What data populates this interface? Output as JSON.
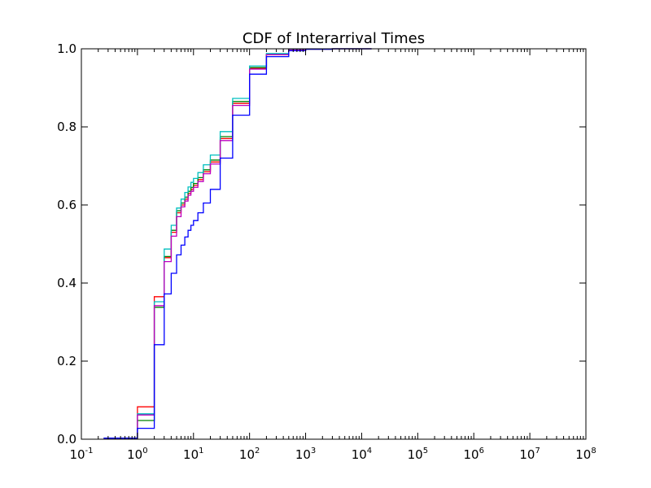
{
  "chart_data": {
    "type": "line",
    "title": "CDF of Interarrival Times",
    "xlabel": "",
    "ylabel": "",
    "x_scale": "log",
    "xlim": [
      0.1,
      100000000
    ],
    "ylim": [
      0.0,
      1.0
    ],
    "grid": false,
    "x_tick_labels": [
      {
        "base": "10",
        "exp": "-1"
      },
      {
        "base": "10",
        "exp": "0"
      },
      {
        "base": "10",
        "exp": "1"
      },
      {
        "base": "10",
        "exp": "2"
      },
      {
        "base": "10",
        "exp": "3"
      },
      {
        "base": "10",
        "exp": "4"
      },
      {
        "base": "10",
        "exp": "5"
      },
      {
        "base": "10",
        "exp": "6"
      },
      {
        "base": "10",
        "exp": "7"
      },
      {
        "base": "10",
        "exp": "8"
      }
    ],
    "y_tick_labels": [
      "0.0",
      "0.2",
      "0.4",
      "0.6",
      "0.8",
      "1.0"
    ],
    "series": [
      {
        "color": "#ff0000",
        "x": [
          0.25,
          1,
          2,
          3,
          4,
          5,
          6,
          7,
          8,
          9,
          10,
          12,
          15,
          20,
          30,
          50,
          100,
          200,
          500,
          1000,
          3000
        ],
        "y": [
          0.003,
          0.083,
          0.365,
          0.465,
          0.53,
          0.58,
          0.6,
          0.615,
          0.63,
          0.64,
          0.65,
          0.665,
          0.685,
          0.71,
          0.77,
          0.86,
          0.95,
          0.985,
          0.997,
          0.999,
          1.0
        ]
      },
      {
        "color": "#008000",
        "x": [
          0.25,
          1,
          2,
          3,
          4,
          5,
          6,
          7,
          8,
          9,
          10,
          12,
          15,
          20,
          30,
          50,
          100,
          200,
          500,
          1000,
          3000
        ],
        "y": [
          0.003,
          0.048,
          0.338,
          0.468,
          0.535,
          0.585,
          0.605,
          0.62,
          0.635,
          0.645,
          0.655,
          0.67,
          0.69,
          0.715,
          0.775,
          0.865,
          0.952,
          0.986,
          0.997,
          0.999,
          1.0
        ]
      },
      {
        "color": "#00bfbf",
        "x": [
          0.25,
          1,
          2,
          3,
          4,
          5,
          6,
          7,
          8,
          9,
          10,
          12,
          15,
          20,
          30,
          50,
          100,
          200,
          500,
          1000,
          3000
        ],
        "y": [
          0.003,
          0.065,
          0.352,
          0.487,
          0.548,
          0.592,
          0.615,
          0.632,
          0.646,
          0.658,
          0.668,
          0.683,
          0.703,
          0.728,
          0.788,
          0.873,
          0.956,
          0.988,
          0.998,
          0.999,
          1.0
        ]
      },
      {
        "color": "#bf00bf",
        "x": [
          0.25,
          1,
          2,
          3,
          4,
          5,
          6,
          7,
          8,
          9,
          10,
          12,
          15,
          20,
          30,
          50,
          100,
          200,
          500,
          1000,
          3000
        ],
        "y": [
          0.003,
          0.062,
          0.342,
          0.455,
          0.52,
          0.57,
          0.595,
          0.61,
          0.625,
          0.635,
          0.645,
          0.66,
          0.68,
          0.705,
          0.765,
          0.855,
          0.948,
          0.985,
          0.997,
          0.999,
          1.0
        ]
      },
      {
        "color": "#0000ff",
        "x": [
          0.25,
          1,
          2,
          3,
          4,
          5,
          6,
          7,
          8,
          9,
          10,
          12,
          15,
          20,
          30,
          50,
          100,
          200,
          500,
          1000,
          3000
        ],
        "y": [
          0.003,
          0.028,
          0.242,
          0.372,
          0.425,
          0.472,
          0.497,
          0.518,
          0.535,
          0.548,
          0.56,
          0.58,
          0.605,
          0.64,
          0.72,
          0.83,
          0.935,
          0.98,
          0.995,
          0.999,
          1.0
        ]
      }
    ]
  }
}
